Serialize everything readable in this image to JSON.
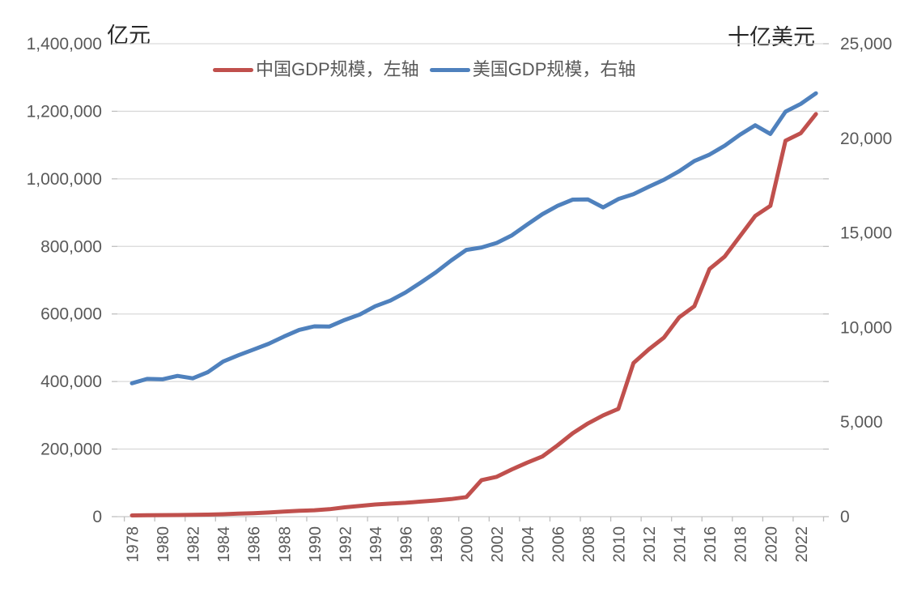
{
  "chart": {
    "left_axis": {
      "unit": "亿元",
      "min": 0,
      "max": 1400000,
      "tick_values": [
        0,
        200000,
        400000,
        600000,
        800000,
        1000000,
        1200000,
        1400000
      ],
      "tick_labels": [
        "0",
        "200,000",
        "400,000",
        "600,000",
        "800,000",
        "1,000,000",
        "1,200,000",
        "1,400,000"
      ]
    },
    "right_axis": {
      "unit": "十亿美元",
      "min": 0,
      "max": 25000,
      "tick_values": [
        0,
        5000,
        10000,
        15000,
        20000,
        25000
      ],
      "tick_labels": [
        "0",
        "5,000",
        "10,000",
        "15,000",
        "20,000",
        "25,000"
      ]
    },
    "x_axis": {
      "tick_years": [
        1978,
        1980,
        1982,
        1984,
        1986,
        1988,
        1990,
        1992,
        1994,
        1996,
        1998,
        2000,
        2002,
        2004,
        2006,
        2008,
        2010,
        2012,
        2014,
        2016,
        2018,
        2020,
        2022
      ],
      "tick_labels": [
        "1978",
        "1980",
        "1982",
        "1984",
        "1986",
        "1988",
        "1990",
        "1992",
        "1994",
        "1996",
        "1998",
        "2000",
        "2002",
        "2004",
        "2006",
        "2008",
        "2010",
        "2012",
        "2014",
        "2016",
        "2018",
        "2020",
        "2022"
      ]
    },
    "colors": {
      "grid": "#D9D9D9",
      "axis_tick": "#BFBFBF",
      "tick_text": "#595959"
    }
  },
  "chart_data": {
    "type": "line",
    "grid": "horizontal",
    "legend_position": "top",
    "left_ylim": [
      0,
      1400000
    ],
    "right_ylim": [
      0,
      25000
    ],
    "x": [
      1978,
      1979,
      1980,
      1981,
      1982,
      1983,
      1984,
      1985,
      1986,
      1987,
      1988,
      1989,
      1990,
      1991,
      1992,
      1993,
      1994,
      1995,
      1996,
      1997,
      1998,
      1999,
      2000,
      2001,
      2002,
      2003,
      2004,
      2005,
      2006,
      2007,
      2008,
      2009,
      2010,
      2011,
      2012,
      2013,
      2014,
      2015,
      2016,
      2017,
      2018,
      2019,
      2020,
      2021,
      2022,
      2023
    ],
    "series": [
      {
        "name": "中国GDP规模，左轴",
        "axis": "left",
        "unit": "亿元",
        "color": "#C0504D",
        "values": [
          3700,
          4100,
          4600,
          4900,
          5400,
          6000,
          7300,
          9100,
          10400,
          12200,
          15200,
          17200,
          19000,
          22000,
          27500,
          32000,
          36000,
          38500,
          41000,
          44500,
          48000,
          52000,
          58000,
          108000,
          118000,
          140000,
          160000,
          178000,
          211000,
          247000,
          276000,
          300000,
          319000,
          455000,
          495000,
          530000,
          590000,
          623000,
          733000,
          770000,
          830000,
          890000,
          920000,
          1113000,
          1135000,
          1192000
        ]
      },
      {
        "name": "美国GDP规模，右轴",
        "axis": "right",
        "unit": "十亿美元",
        "color": "#4F81BD",
        "values": [
          7050,
          7280,
          7260,
          7440,
          7310,
          7640,
          8200,
          8530,
          8830,
          9140,
          9520,
          9870,
          10060,
          10050,
          10400,
          10690,
          11120,
          11420,
          11850,
          12370,
          12920,
          13540,
          14100,
          14230,
          14470,
          14870,
          15440,
          15990,
          16430,
          16760,
          16770,
          16350,
          16790,
          17050,
          17440,
          17810,
          18260,
          18800,
          19140,
          19610,
          20190,
          20690,
          20230,
          21410,
          21820,
          22380
        ]
      }
    ]
  }
}
